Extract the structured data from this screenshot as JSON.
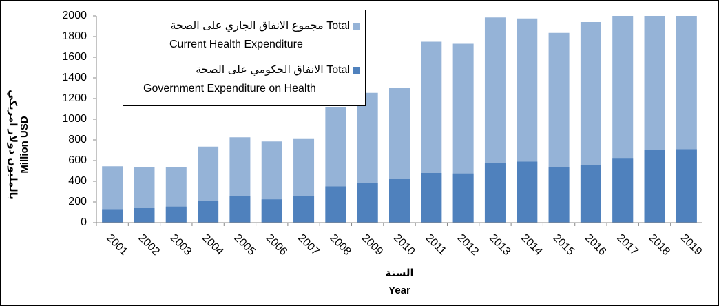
{
  "chart_data": {
    "type": "bar",
    "categories": [
      "2001",
      "2002",
      "2003",
      "2004",
      "2005",
      "2006",
      "2007",
      "2008",
      "2009",
      "2010",
      "2011",
      "2012",
      "2013",
      "2014",
      "2015",
      "2016",
      "2017",
      "2018",
      "2019"
    ],
    "series": [
      {
        "name": [
          "مجموع الانفاق الجاري على الصحة Total",
          "Current Health Expenditure"
        ],
        "color": "#95b3d7",
        "values": [
          545,
          535,
          535,
          735,
          825,
          785,
          815,
          1120,
          1255,
          1300,
          1750,
          1730,
          1985,
          1975,
          1835,
          1940,
          2000,
          2000,
          2000
        ]
      },
      {
        "name": [
          "الانفاق الحكومي على الصحة  Total",
          "Government Expenditure on Health"
        ],
        "color": "#4f81bd",
        "values": [
          130,
          140,
          155,
          210,
          260,
          225,
          255,
          350,
          385,
          420,
          480,
          475,
          575,
          590,
          540,
          555,
          625,
          700,
          710
        ]
      }
    ],
    "ylim": [
      0,
      2000
    ],
    "yticks": [
      0,
      200,
      400,
      600,
      800,
      1000,
      1200,
      1400,
      1600,
      1800,
      2000
    ],
    "ylabel": [
      "بالمليون دولار امريكي",
      "Million USD"
    ],
    "xlabel": [
      "السنة",
      "Year"
    ],
    "grid": false
  }
}
